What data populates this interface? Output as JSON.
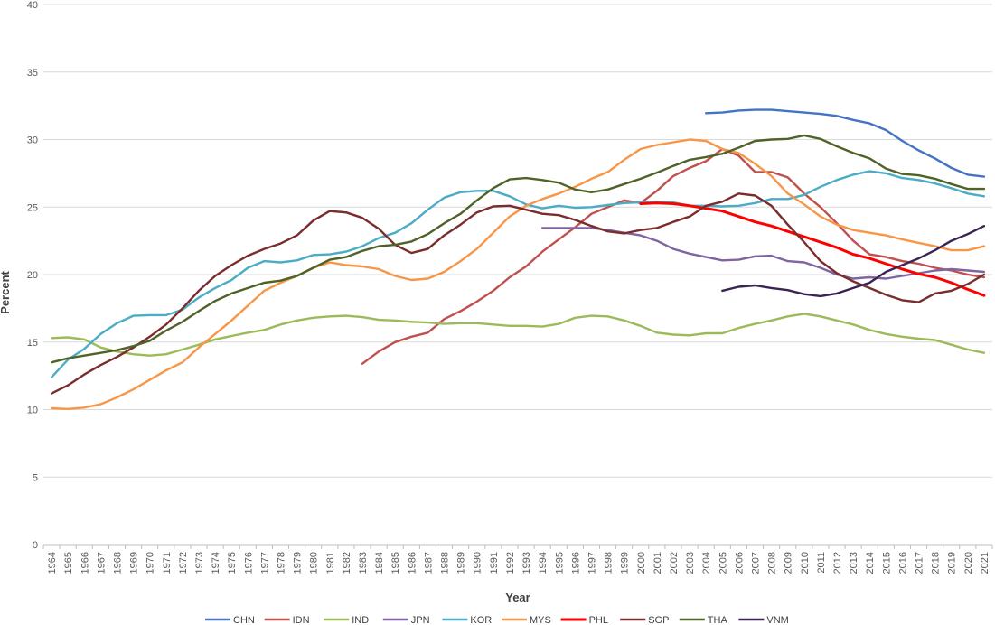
{
  "chart_data": {
    "type": "line",
    "title": "",
    "xlabel": "Year",
    "ylabel": "Percent",
    "ylim": [
      0,
      40
    ],
    "yticks": [
      0,
      5,
      10,
      15,
      20,
      25,
      30,
      35,
      40
    ],
    "grid": true,
    "legend_position": "bottom",
    "x": [
      "1964",
      "1965",
      "1966",
      "1967",
      "1968",
      "1969",
      "1970",
      "1971",
      "1972",
      "1973",
      "1974",
      "1975",
      "1976",
      "1977",
      "1978",
      "1979",
      "1980",
      "1981",
      "1982",
      "1983",
      "1984",
      "1985",
      "1986",
      "1987",
      "1988",
      "1989",
      "1990",
      "1991",
      "1992",
      "1993",
      "1994",
      "1995",
      "1996",
      "1997",
      "1998",
      "1999",
      "2000",
      "2001",
      "2002",
      "2003",
      "2004",
      "2005",
      "2006",
      "2007",
      "2008",
      "2009",
      "2010",
      "2011",
      "2012",
      "2013",
      "2014",
      "2015",
      "2016",
      "2017",
      "2018",
      "2019",
      "2020",
      "2021"
    ],
    "series": [
      {
        "name": "CHN",
        "color": "#4472C4",
        "values": [
          null,
          null,
          null,
          null,
          null,
          null,
          null,
          null,
          null,
          null,
          null,
          null,
          null,
          null,
          null,
          null,
          null,
          null,
          null,
          null,
          null,
          null,
          null,
          null,
          null,
          null,
          null,
          null,
          null,
          null,
          null,
          null,
          null,
          null,
          null,
          null,
          null,
          null,
          null,
          null,
          31.95,
          32.0,
          32.15,
          32.2,
          32.2,
          32.1,
          32.0,
          31.9,
          31.75,
          31.45,
          31.2,
          30.7,
          29.9,
          29.2,
          28.6,
          27.9,
          27.4,
          27.25
        ]
      },
      {
        "name": "IDN",
        "color": "#C0504D",
        "values": [
          null,
          null,
          null,
          null,
          null,
          null,
          null,
          null,
          null,
          null,
          null,
          null,
          null,
          null,
          null,
          null,
          null,
          null,
          null,
          13.4,
          14.3,
          15.0,
          15.4,
          15.7,
          16.7,
          17.3,
          18.0,
          18.8,
          19.8,
          20.6,
          21.7,
          22.6,
          23.5,
          24.5,
          25.0,
          25.5,
          25.3,
          26.2,
          27.3,
          27.9,
          28.4,
          29.3,
          28.8,
          27.6,
          27.6,
          27.2,
          26.0,
          25.0,
          23.8,
          22.5,
          21.5,
          21.3,
          21.0,
          20.8,
          20.5,
          20.3,
          20.0,
          19.8
        ]
      },
      {
        "name": "IND",
        "color": "#9BBB59",
        "values": [
          15.3,
          15.35,
          15.2,
          14.6,
          14.3,
          14.1,
          14.0,
          14.1,
          14.45,
          14.8,
          15.2,
          15.45,
          15.7,
          15.9,
          16.3,
          16.6,
          16.8,
          16.9,
          16.95,
          16.85,
          16.65,
          16.6,
          16.5,
          16.45,
          16.35,
          16.4,
          16.4,
          16.3,
          16.2,
          16.2,
          16.15,
          16.35,
          16.8,
          16.95,
          16.9,
          16.6,
          16.2,
          15.7,
          15.55,
          15.5,
          15.65,
          15.65,
          16.05,
          16.35,
          16.6,
          16.9,
          17.1,
          16.9,
          16.6,
          16.3,
          15.9,
          15.6,
          15.4,
          15.25,
          15.15,
          14.8,
          14.45,
          14.2
        ]
      },
      {
        "name": "JPN",
        "color": "#8064A2",
        "values": [
          null,
          null,
          null,
          null,
          null,
          null,
          null,
          null,
          null,
          null,
          null,
          null,
          null,
          null,
          null,
          null,
          null,
          null,
          null,
          null,
          null,
          null,
          null,
          null,
          null,
          null,
          null,
          null,
          null,
          null,
          23.45,
          23.45,
          23.45,
          23.45,
          23.3,
          23.1,
          22.9,
          22.5,
          21.9,
          21.55,
          21.3,
          21.05,
          21.1,
          21.35,
          21.4,
          21.0,
          20.9,
          20.5,
          20.0,
          19.7,
          19.8,
          19.7,
          19.9,
          20.1,
          20.3,
          20.4,
          20.3,
          20.2
        ]
      },
      {
        "name": "KOR",
        "color": "#4BACC6",
        "values": [
          12.4,
          13.7,
          14.5,
          15.6,
          16.4,
          16.95,
          17.0,
          17.0,
          17.4,
          18.3,
          19.0,
          19.6,
          20.5,
          21.0,
          20.9,
          21.05,
          21.45,
          21.5,
          21.7,
          22.1,
          22.7,
          23.1,
          23.8,
          24.8,
          25.7,
          26.1,
          26.2,
          26.2,
          25.8,
          25.2,
          24.9,
          25.1,
          24.95,
          25.0,
          25.15,
          25.3,
          25.35,
          25.35,
          25.35,
          25.1,
          25.1,
          25.05,
          25.1,
          25.3,
          25.6,
          25.6,
          25.9,
          26.5,
          27.0,
          27.4,
          27.65,
          27.5,
          27.15,
          27.0,
          26.75,
          26.4,
          26.0,
          25.8
        ]
      },
      {
        "name": "MYS",
        "color": "#F79646",
        "values": [
          10.1,
          10.05,
          10.15,
          10.4,
          10.9,
          11.5,
          12.2,
          12.9,
          13.5,
          14.6,
          15.6,
          16.6,
          17.7,
          18.8,
          19.4,
          19.9,
          20.5,
          20.9,
          20.7,
          20.6,
          20.4,
          19.9,
          19.6,
          19.7,
          20.2,
          21.0,
          21.9,
          23.1,
          24.3,
          25.1,
          25.6,
          26.0,
          26.5,
          27.1,
          27.6,
          28.5,
          29.3,
          29.6,
          29.8,
          30.0,
          29.9,
          29.3,
          29.0,
          28.2,
          27.3,
          26.0,
          25.2,
          24.3,
          23.7,
          23.3,
          23.1,
          22.9,
          22.6,
          22.35,
          22.1,
          21.8,
          21.8,
          22.1
        ]
      },
      {
        "name": "PHL",
        "color": "#FF0000",
        "values": [
          null,
          null,
          null,
          null,
          null,
          null,
          null,
          null,
          null,
          null,
          null,
          null,
          null,
          null,
          null,
          null,
          null,
          null,
          null,
          null,
          null,
          null,
          null,
          null,
          null,
          null,
          null,
          null,
          null,
          null,
          null,
          null,
          null,
          null,
          null,
          null,
          25.25,
          25.3,
          25.25,
          25.1,
          24.9,
          24.7,
          24.3,
          23.9,
          23.6,
          23.2,
          22.8,
          22.4,
          22.0,
          21.5,
          21.2,
          20.8,
          20.4,
          20.05,
          19.8,
          19.4,
          18.9,
          18.45
        ]
      },
      {
        "name": "SGP",
        "color": "#7B2C2C",
        "values": [
          11.2,
          11.8,
          12.6,
          13.3,
          13.9,
          14.6,
          15.4,
          16.3,
          17.5,
          18.8,
          19.9,
          20.7,
          21.4,
          21.9,
          22.3,
          22.9,
          24.0,
          24.7,
          24.6,
          24.2,
          23.4,
          22.2,
          21.6,
          21.9,
          22.9,
          23.7,
          24.6,
          25.05,
          25.1,
          24.8,
          24.5,
          24.4,
          24.05,
          23.6,
          23.2,
          23.05,
          23.3,
          23.45,
          23.9,
          24.3,
          25.1,
          25.4,
          26.0,
          25.85,
          25.1,
          23.7,
          22.4,
          21.0,
          20.1,
          19.5,
          19.0,
          18.5,
          18.1,
          17.95,
          18.6,
          18.8,
          19.3,
          20.0
        ]
      },
      {
        "name": "THA",
        "color": "#4F6228",
        "values": [
          13.5,
          13.8,
          14.0,
          14.2,
          14.4,
          14.7,
          15.1,
          15.85,
          16.5,
          17.3,
          18.05,
          18.6,
          19.0,
          19.4,
          19.55,
          19.9,
          20.5,
          21.1,
          21.3,
          21.75,
          22.1,
          22.2,
          22.45,
          23.0,
          23.8,
          24.5,
          25.5,
          26.4,
          27.05,
          27.15,
          27.0,
          26.8,
          26.3,
          26.1,
          26.3,
          26.7,
          27.1,
          27.55,
          28.05,
          28.5,
          28.7,
          28.95,
          29.4,
          29.9,
          30.0,
          30.05,
          30.3,
          30.05,
          29.5,
          29.0,
          28.6,
          27.85,
          27.45,
          27.35,
          27.1,
          26.7,
          26.35,
          26.35
        ]
      },
      {
        "name": "VNM",
        "color": "#3B2453",
        "values": [
          null,
          null,
          null,
          null,
          null,
          null,
          null,
          null,
          null,
          null,
          null,
          null,
          null,
          null,
          null,
          null,
          null,
          null,
          null,
          null,
          null,
          null,
          null,
          null,
          null,
          null,
          null,
          null,
          null,
          null,
          null,
          null,
          null,
          null,
          null,
          null,
          null,
          null,
          null,
          null,
          null,
          18.8,
          19.1,
          19.2,
          19.0,
          18.85,
          18.55,
          18.4,
          18.6,
          19.0,
          19.4,
          20.2,
          20.7,
          21.2,
          21.8,
          22.5,
          23.0,
          23.6
        ]
      }
    ]
  }
}
